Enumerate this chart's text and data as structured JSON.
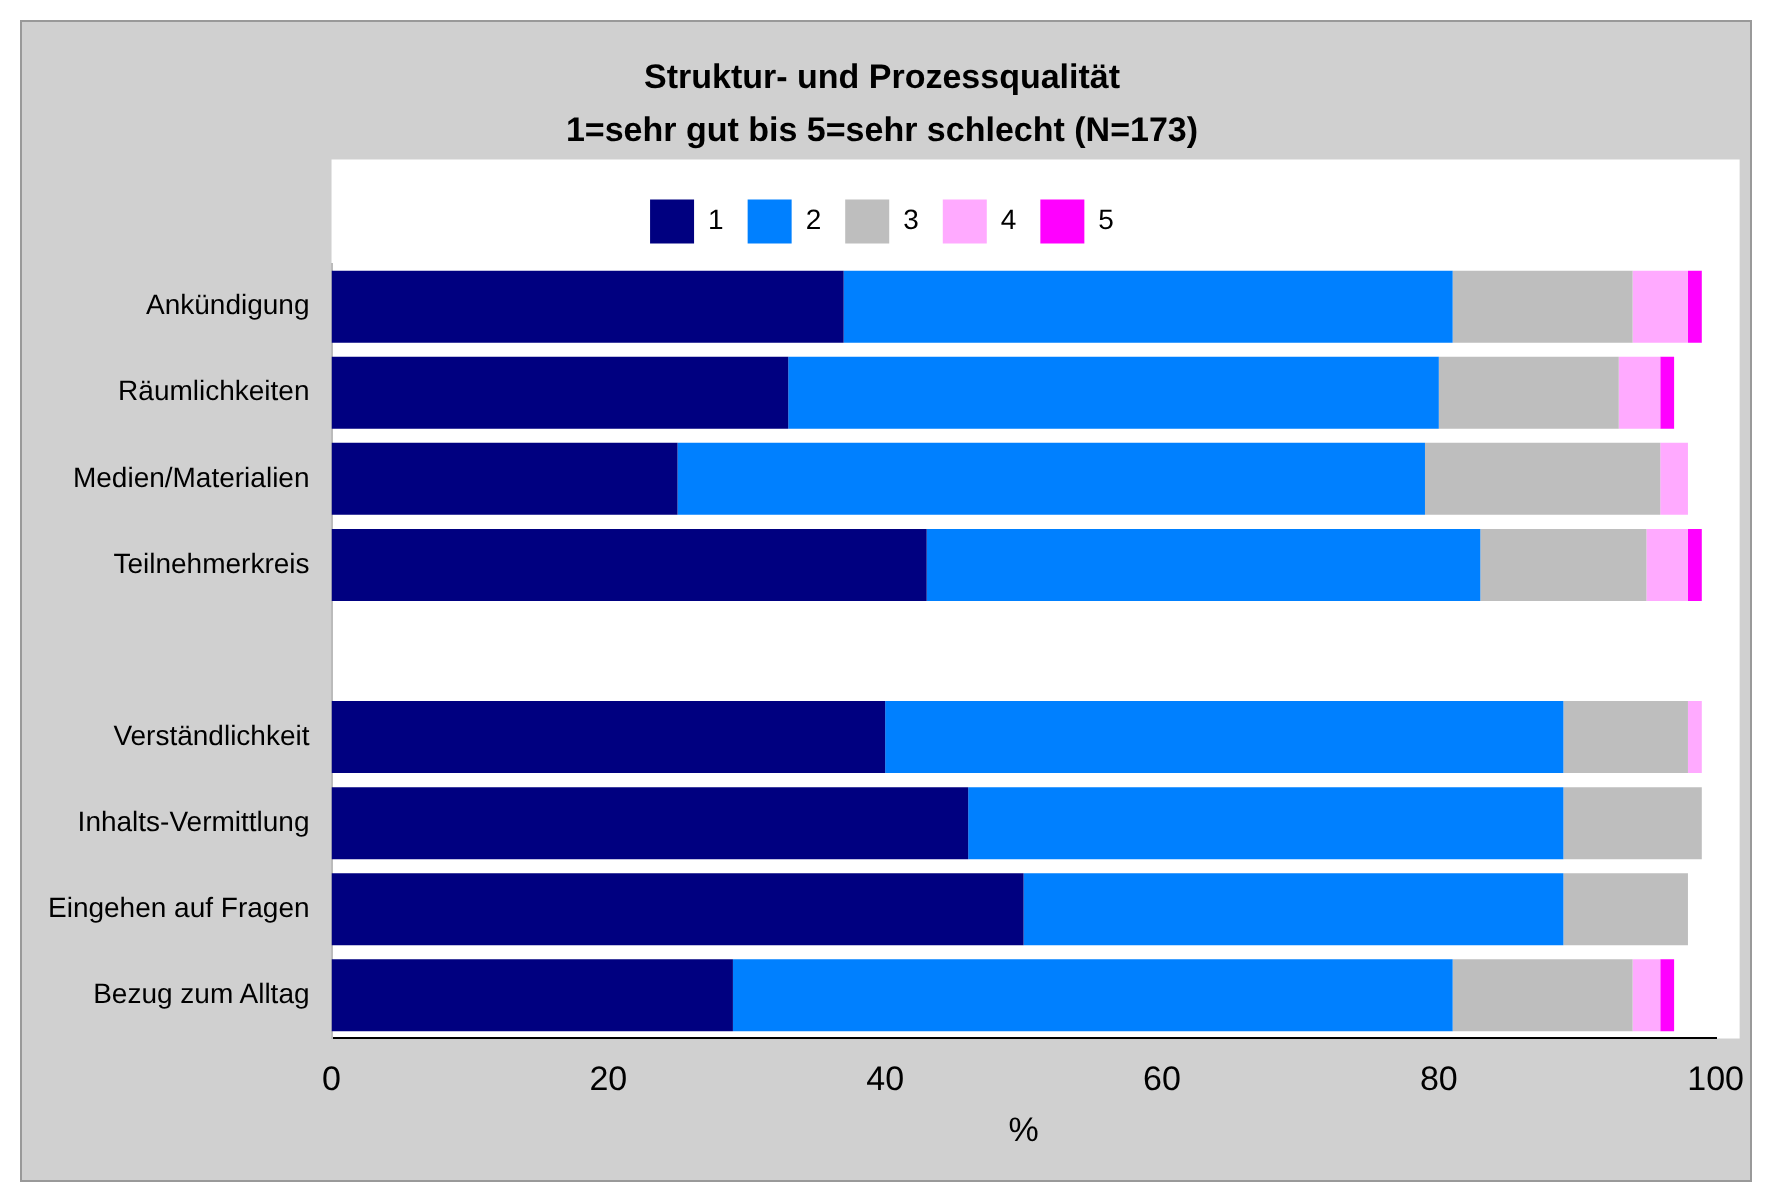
{
  "chart_data": {
    "type": "bar",
    "orientation": "horizontal",
    "stacked": true,
    "title": "Struktur- und Prozessqualität",
    "subtitle": "1=sehr gut bis 5=sehr schlecht (N=173)",
    "xlabel": "%",
    "categories": [
      "Ankündigung",
      "Räumlichkeiten",
      "Medien/Materialien",
      "Teilnehmerkreis",
      null,
      "Verständlichkeit",
      "Inhalts-Vermittlung",
      "Eingehen auf Fragen",
      "Bezug zum Alltag"
    ],
    "series": [
      {
        "name": "1",
        "color": "#000080",
        "values": [
          37,
          33,
          25,
          43,
          null,
          40,
          46,
          50,
          29
        ]
      },
      {
        "name": "2",
        "color": "#0080ff",
        "values": [
          44,
          47,
          54,
          40,
          null,
          49,
          43,
          39,
          52
        ]
      },
      {
        "name": "3",
        "color": "#bebebe",
        "values": [
          13,
          13,
          17,
          12,
          null,
          9,
          10,
          9,
          13
        ]
      },
      {
        "name": "4",
        "color": "#ffaaff",
        "values": [
          4,
          3,
          2,
          3,
          null,
          1,
          0,
          0,
          2
        ]
      },
      {
        "name": "5",
        "color": "#ff00ff",
        "values": [
          1,
          1,
          0,
          1,
          null,
          0,
          0,
          0,
          1
        ]
      }
    ],
    "xlim": [
      0,
      100
    ],
    "xticks": [
      0,
      20,
      40,
      60,
      80,
      100
    ],
    "grid": false,
    "legend": "top"
  }
}
